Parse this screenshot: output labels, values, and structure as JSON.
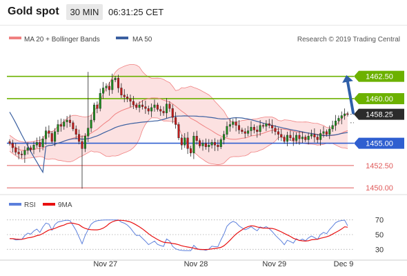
{
  "header": {
    "title": "Gold spot",
    "timeframe": "30 MIN",
    "clock": "06:31:25 CET"
  },
  "source": "Research © 2019 Trading Central",
  "colors": {
    "support": "#2f5fd0",
    "resistance": "#6cb100",
    "neutral_level": "#e05a5a",
    "bollinger": "#f5a8a8",
    "ma50": "#3a5fa0",
    "candle_up": "#1e8c1e",
    "candle_down": "#c21a1a",
    "rsi": "#5b7fdc",
    "rsi_ma": "#e81010",
    "current_price_bg": "#2b2b2b"
  },
  "chart_data": [
    {
      "type": "candlestick",
      "instrument": "Gold spot",
      "timeframe": "30 MIN",
      "legend": [
        {
          "name": "MA 20 + Bollinger Bands",
          "color": "#f08080"
        },
        {
          "name": "MA 50",
          "color": "#3a5fa0"
        }
      ],
      "ylim": [
        1449.4,
        1465.8
      ],
      "y_ticks": [
        1450.0,
        1452.5,
        1455.0,
        1458.25,
        1460.0,
        1462.5
      ],
      "x_ticks": [
        "Nov 27",
        "Nov 28",
        "Nov 29",
        "Dec 9"
      ],
      "levels": [
        {
          "value": 1462.5,
          "label": "1462.50",
          "kind": "resistance"
        },
        {
          "value": 1460.0,
          "label": "1460.00",
          "kind": "resistance"
        },
        {
          "value": 1458.25,
          "label": "1458.25",
          "kind": "current"
        },
        {
          "value": 1455.0,
          "label": "1455.00",
          "kind": "support"
        },
        {
          "value": 1452.5,
          "label": "1452.50",
          "kind": "level"
        },
        {
          "value": 1450.0,
          "label": "1450.00",
          "kind": "level"
        }
      ],
      "projection": {
        "from": 1458.25,
        "to": 1462.5
      },
      "close": [
        1455.0,
        1454.5,
        1454.0,
        1453.8,
        1453.7,
        1454.2,
        1454.5,
        1454.3,
        1454.8,
        1455.1,
        1454.6,
        1455.5,
        1456.4,
        1456.1,
        1455.2,
        1456.3,
        1457.1,
        1456.9,
        1457.4,
        1457.6,
        1457.3,
        1456.6,
        1456.0,
        1455.2,
        1454.4,
        1455.8,
        1456.7,
        1457.6,
        1459.3,
        1458.9,
        1460.6,
        1461.2,
        1461.4,
        1461.0,
        1462.1,
        1462.3,
        1461.2,
        1460.4,
        1460.2,
        1460.0,
        1459.7,
        1459.3,
        1459.0,
        1459.3,
        1459.1,
        1458.9,
        1458.6,
        1459.0,
        1459.3,
        1458.8,
        1458.6,
        1458.4,
        1459.4,
        1458.9,
        1457.9,
        1457.1,
        1455.6,
        1454.8,
        1455.6,
        1454.4,
        1453.9,
        1455.8,
        1455.3,
        1454.7,
        1455.0,
        1454.6,
        1454.8,
        1455.1,
        1454.8,
        1454.6,
        1455.4,
        1456.0,
        1456.9,
        1457.1,
        1457.4,
        1457.0,
        1456.5,
        1456.3,
        1456.1,
        1456.4,
        1456.8,
        1456.5,
        1456.3,
        1457.0,
        1456.9,
        1457.2,
        1457.0,
        1456.7,
        1456.3,
        1456.0,
        1455.7,
        1455.2,
        1455.9,
        1455.6,
        1455.3,
        1455.9,
        1455.5,
        1455.7,
        1455.4,
        1455.8,
        1456.0,
        1455.7,
        1455.4,
        1456.1,
        1456.3,
        1456.0,
        1456.6,
        1457.0,
        1457.5,
        1457.8,
        1458.1,
        1458.3,
        1458.25
      ]
    },
    {
      "type": "line",
      "indicator": "RSI",
      "legend": [
        {
          "name": "RSI",
          "color": "#5b7fdc"
        },
        {
          "name": "9MA",
          "color": "#e81010"
        }
      ],
      "ylim": [
        20,
        80
      ],
      "y_ticks": [
        30,
        50,
        70
      ],
      "rsi_last": 62,
      "rsi_ma_last": 60
    }
  ]
}
